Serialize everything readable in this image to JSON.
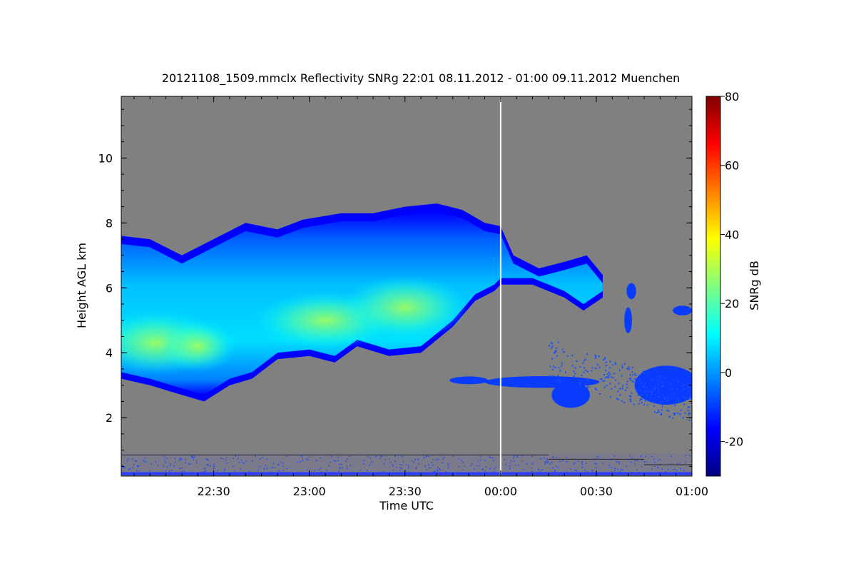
{
  "chart_data": {
    "type": "heatmap",
    "title": "20121108_1509.mmclx Reflectivity SNRg   22:01 08.11.2012 - 01:00 09.11.2012 Muenchen",
    "xlabel": "Time UTC",
    "ylabel": "Height AGL km",
    "colorbar_label": "SNRg dB",
    "x_range_minutes": [
      -119,
      60
    ],
    "y_range_km": [
      0.2,
      11.9
    ],
    "x_ticks": [
      {
        "value": -90,
        "label": "22:30"
      },
      {
        "value": -60,
        "label": "23:00"
      },
      {
        "value": -30,
        "label": "23:30"
      },
      {
        "value": 0,
        "label": "00:00"
      },
      {
        "value": 30,
        "label": "00:30"
      },
      {
        "value": 60,
        "label": "01:00"
      }
    ],
    "y_ticks": [
      {
        "value": 2,
        "label": "2"
      },
      {
        "value": 4,
        "label": "4"
      },
      {
        "value": 6,
        "label": "6"
      },
      {
        "value": 8,
        "label": "8"
      },
      {
        "value": 10,
        "label": "10"
      }
    ],
    "colorbar_range": [
      -30,
      80
    ],
    "colorbar_ticks": [
      {
        "value": -20,
        "label": "-20"
      },
      {
        "value": 0,
        "label": "0"
      },
      {
        "value": 20,
        "label": "20"
      },
      {
        "value": 40,
        "label": "40"
      },
      {
        "value": 60,
        "label": "60"
      },
      {
        "value": 80,
        "label": "80"
      }
    ],
    "colormap": [
      "#00007f",
      "#0000ff",
      "#007fff",
      "#00ffff",
      "#7fff7f",
      "#ffff00",
      "#ff7f00",
      "#ff0000",
      "#7f0000"
    ],
    "background_color": "#808080",
    "marker_line_time_minutes": 0,
    "cloud_top_km": [
      [
        -119,
        7.6
      ],
      [
        -110,
        7.5
      ],
      [
        -100,
        7.0
      ],
      [
        -88,
        7.6
      ],
      [
        -80,
        8.0
      ],
      [
        -70,
        7.8
      ],
      [
        -62,
        8.1
      ],
      [
        -50,
        8.3
      ],
      [
        -40,
        8.3
      ],
      [
        -30,
        8.5
      ],
      [
        -20,
        8.6
      ],
      [
        -12,
        8.4
      ],
      [
        -5,
        8.0
      ],
      [
        0,
        7.9
      ],
      [
        4,
        7.0
      ],
      [
        12,
        6.6
      ],
      [
        20,
        6.8
      ],
      [
        27,
        7.0
      ],
      [
        32,
        6.4
      ]
    ],
    "cloud_base_km": [
      [
        -119,
        3.2
      ],
      [
        -110,
        3.0
      ],
      [
        -100,
        2.7
      ],
      [
        -93,
        2.5
      ],
      [
        -85,
        3.0
      ],
      [
        -78,
        3.2
      ],
      [
        -70,
        3.8
      ],
      [
        -60,
        3.9
      ],
      [
        -52,
        3.7
      ],
      [
        -45,
        4.2
      ],
      [
        -35,
        3.9
      ],
      [
        -25,
        4.0
      ],
      [
        -15,
        4.8
      ],
      [
        -8,
        5.6
      ],
      [
        -2,
        5.9
      ],
      [
        0,
        6.1
      ],
      [
        10,
        6.1
      ],
      [
        20,
        5.7
      ],
      [
        26,
        5.3
      ],
      [
        32,
        5.7
      ]
    ],
    "cloud_core": [
      {
        "t": -108,
        "h": 4.3,
        "rt": 20,
        "rh": 1.0,
        "snr": 22
      },
      {
        "t": -95,
        "h": 4.2,
        "rt": 12,
        "rh": 0.8,
        "snr": 24
      },
      {
        "t": -55,
        "h": 5.0,
        "rt": 22,
        "rh": 0.9,
        "snr": 14
      },
      {
        "t": -30,
        "h": 5.4,
        "rt": 20,
        "rh": 1.0,
        "snr": 12
      }
    ],
    "isolated_echoes": [
      {
        "t": -10,
        "h": 3.15,
        "rt": 6,
        "rh": 0.12
      },
      {
        "t": 13,
        "h": 3.1,
        "rt": 18,
        "rh": 0.18
      },
      {
        "t": 22,
        "h": 2.7,
        "rt": 6,
        "rh": 0.4
      },
      {
        "t": 41,
        "h": 5.9,
        "rt": 1.5,
        "rh": 0.25
      },
      {
        "t": 40,
        "h": 5.0,
        "rt": 1.2,
        "rh": 0.4
      },
      {
        "t": 57,
        "h": 5.3,
        "rt": 3,
        "rh": 0.15
      },
      {
        "t": 52,
        "h": 3.0,
        "rt": 10,
        "rh": 0.6
      }
    ]
  }
}
